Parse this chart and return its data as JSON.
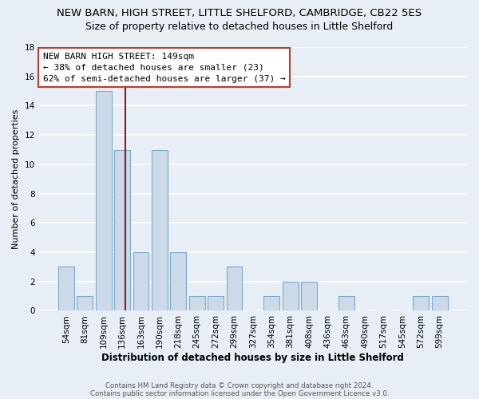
{
  "title": "NEW BARN, HIGH STREET, LITTLE SHELFORD, CAMBRIDGE, CB22 5ES",
  "subtitle": "Size of property relative to detached houses in Little Shelford",
  "xlabel": "Distribution of detached houses by size in Little Shelford",
  "ylabel": "Number of detached properties",
  "footnote1": "Contains HM Land Registry data © Crown copyright and database right 2024.",
  "footnote2": "Contains public sector information licensed under the Open Government Licence v3.0.",
  "bar_labels": [
    "54sqm",
    "81sqm",
    "109sqm",
    "136sqm",
    "163sqm",
    "190sqm",
    "218sqm",
    "245sqm",
    "272sqm",
    "299sqm",
    "327sqm",
    "354sqm",
    "381sqm",
    "408sqm",
    "436sqm",
    "463sqm",
    "490sqm",
    "517sqm",
    "545sqm",
    "572sqm",
    "599sqm"
  ],
  "bar_values": [
    3,
    1,
    15,
    11,
    4,
    11,
    4,
    1,
    1,
    3,
    0,
    1,
    2,
    2,
    0,
    1,
    0,
    0,
    0,
    1,
    1
  ],
  "bar_color": "#ccd9e8",
  "bar_edge_color": "#7aaac8",
  "vline_color": "#8b1a1a",
  "vline_position": 3.15,
  "annotation_title": "NEW BARN HIGH STREET: 149sqm",
  "annotation_line1": "← 38% of detached houses are smaller (23)",
  "annotation_line2": "62% of semi-detached houses are larger (37) →",
  "annotation_box_color": "#ffffff",
  "annotation_box_edge": "#c0392b",
  "ylim": [
    0,
    18
  ],
  "yticks": [
    0,
    2,
    4,
    6,
    8,
    10,
    12,
    14,
    16,
    18
  ],
  "background_color": "#e8eef5",
  "grid_color": "#ffffff",
  "title_fontsize": 9.5,
  "subtitle_fontsize": 9,
  "ylabel_fontsize": 8,
  "xlabel_fontsize": 8.5,
  "tick_fontsize": 7.5,
  "annotation_fontsize": 8
}
